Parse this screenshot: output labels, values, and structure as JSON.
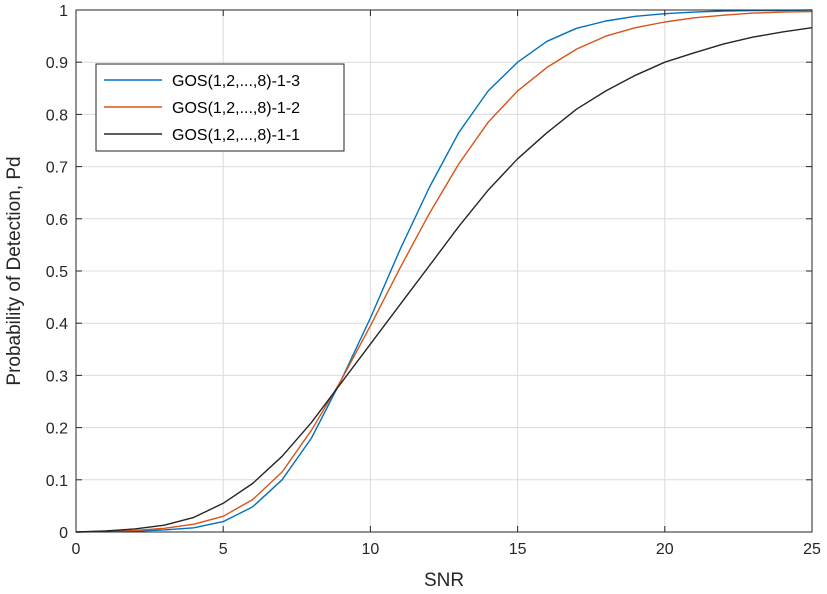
{
  "chart_data": {
    "type": "line",
    "xlabel": "SNR",
    "ylabel": "Probability of Detection, Pd",
    "xlim": [
      0,
      25
    ],
    "ylim": [
      0,
      1
    ],
    "xticks": [
      0,
      5,
      10,
      15,
      20,
      25
    ],
    "yticks": [
      0,
      0.1,
      0.2,
      0.3,
      0.4,
      0.5,
      0.6,
      0.7,
      0.8,
      0.9,
      1
    ],
    "grid": true,
    "legend_position": "top-left",
    "x": [
      0,
      1,
      2,
      3,
      4,
      5,
      6,
      7,
      8,
      9,
      10,
      11,
      12,
      13,
      14,
      15,
      16,
      17,
      18,
      19,
      20,
      21,
      22,
      23,
      24,
      25
    ],
    "series": [
      {
        "name": "GOS(1,2,...,8)-1-3",
        "color": "#0072BD",
        "values": [
          0,
          0.001,
          0.002,
          0.004,
          0.008,
          0.02,
          0.048,
          0.1,
          0.18,
          0.29,
          0.41,
          0.54,
          0.66,
          0.765,
          0.845,
          0.9,
          0.94,
          0.965,
          0.979,
          0.988,
          0.993,
          0.996,
          0.998,
          0.999,
          0.999,
          1.0
        ]
      },
      {
        "name": "GOS(1,2,...,8)-1-2",
        "color": "#D95319",
        "values": [
          0,
          0.001,
          0.003,
          0.007,
          0.015,
          0.03,
          0.062,
          0.115,
          0.195,
          0.29,
          0.395,
          0.505,
          0.61,
          0.705,
          0.785,
          0.845,
          0.89,
          0.925,
          0.95,
          0.966,
          0.977,
          0.985,
          0.99,
          0.994,
          0.996,
          0.997
        ]
      },
      {
        "name": "GOS(1,2,...,8)-1-1",
        "color": "#262626",
        "values": [
          0,
          0.002,
          0.006,
          0.013,
          0.028,
          0.055,
          0.093,
          0.145,
          0.21,
          0.285,
          0.36,
          0.435,
          0.51,
          0.585,
          0.655,
          0.715,
          0.765,
          0.81,
          0.845,
          0.875,
          0.9,
          0.918,
          0.935,
          0.948,
          0.958,
          0.966
        ]
      }
    ]
  }
}
